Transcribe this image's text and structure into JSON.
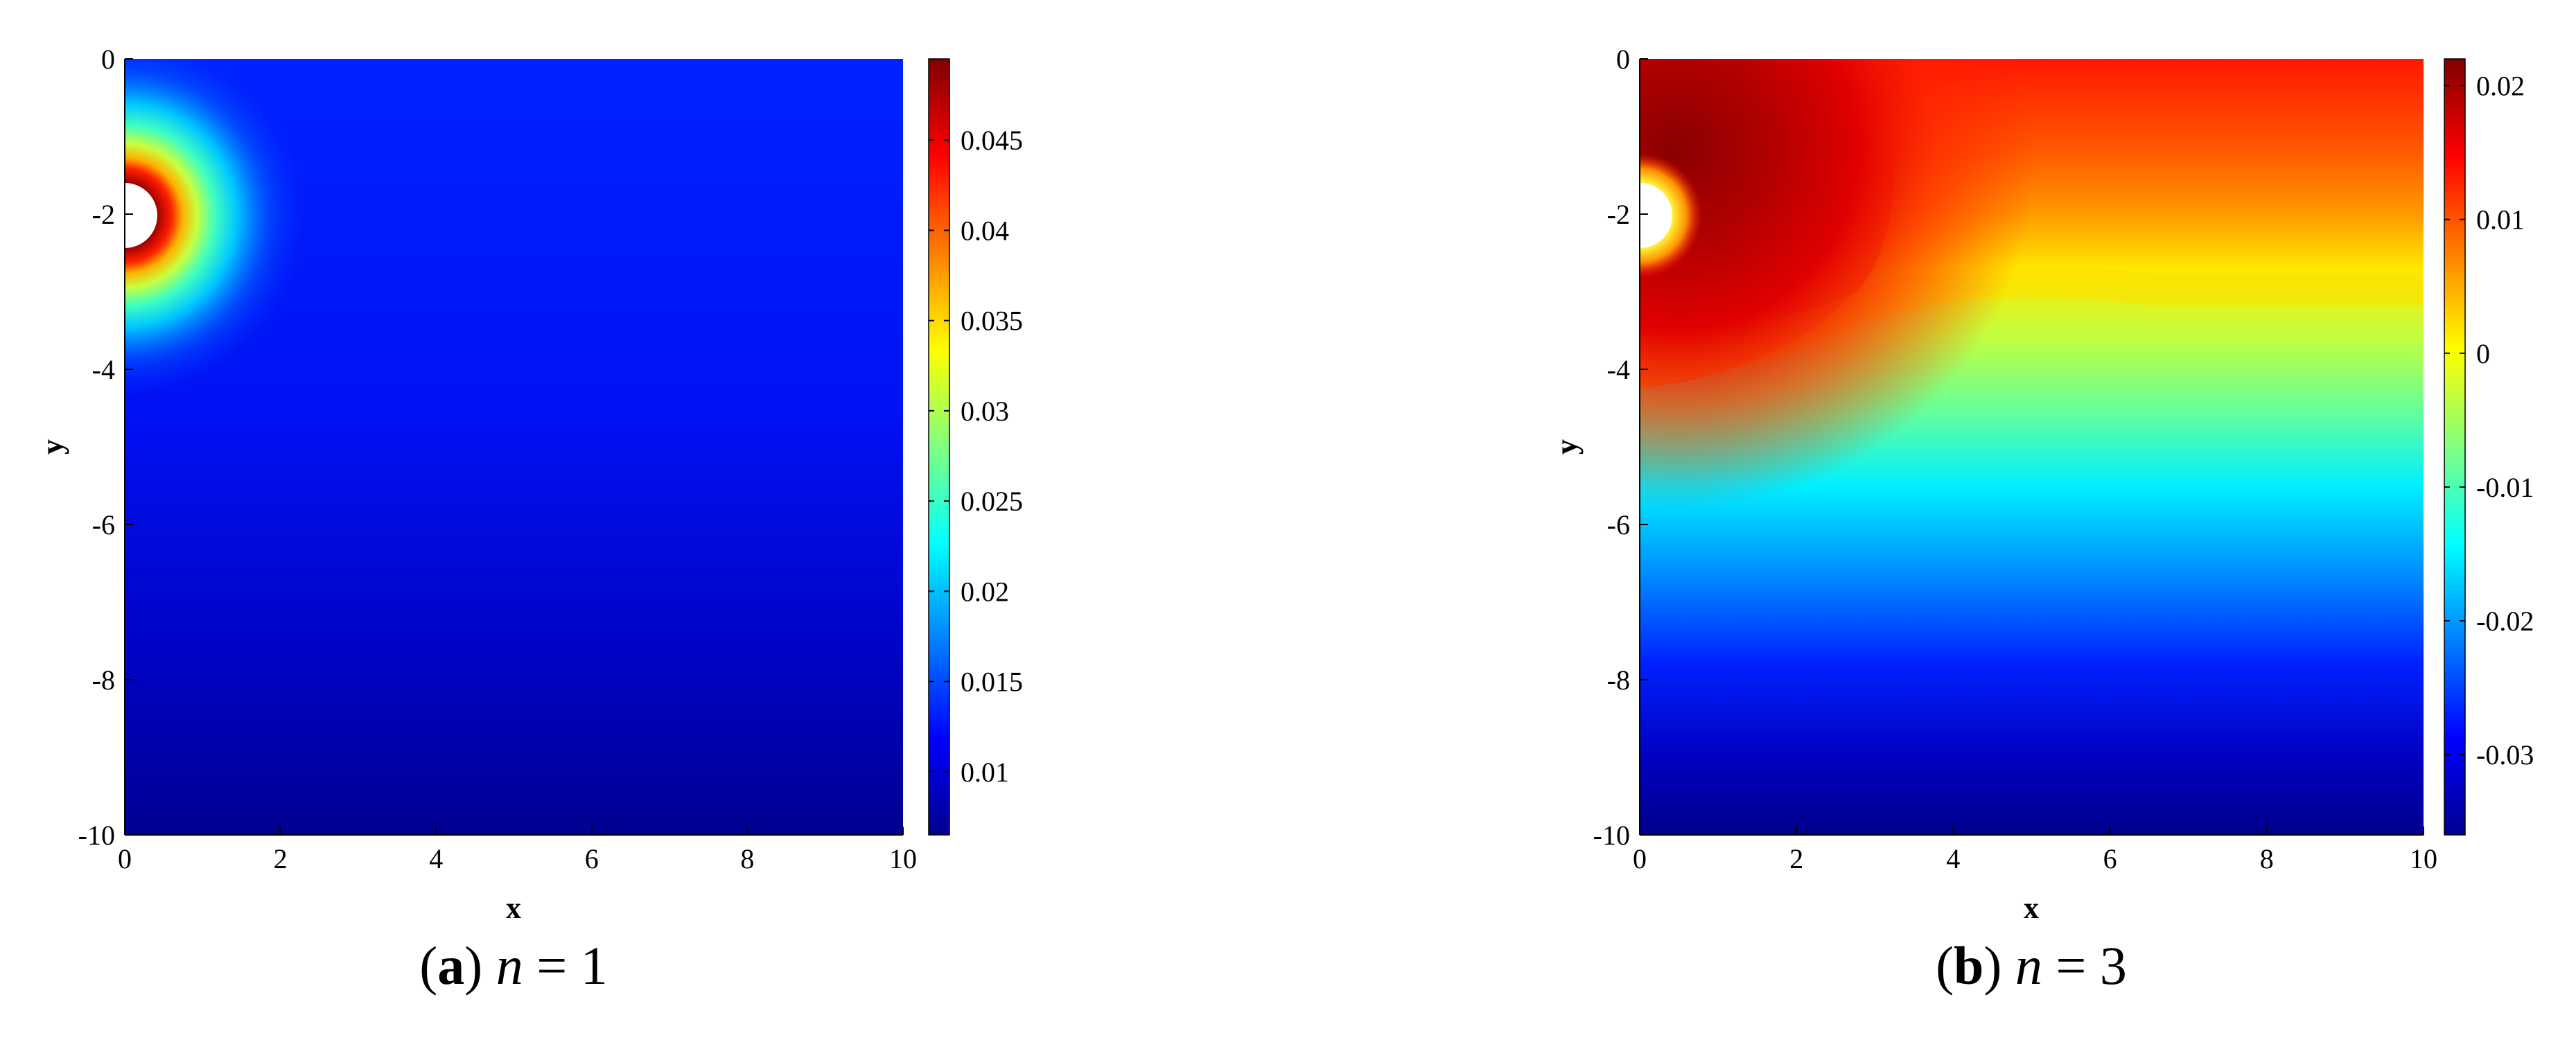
{
  "chart_data": [
    {
      "type": "heatmap",
      "panel": "a",
      "caption": {
        "letter": "a",
        "var": "n",
        "eq": "=",
        "value": "1"
      },
      "xlabel": "x",
      "ylabel": "y",
      "xlim": [
        0,
        10
      ],
      "ylim": [
        -10,
        0
      ],
      "xticks": [
        0,
        2,
        4,
        6,
        8,
        10
      ],
      "yticks": [
        0,
        -2,
        -4,
        -6,
        -8,
        -10
      ],
      "colormap": "jet",
      "clim": [
        0.0065,
        0.0495
      ],
      "colorbar_ticks": [
        "0.01",
        "0.015",
        "0.02",
        "0.025",
        "0.03",
        "0.035",
        "0.04",
        "0.045"
      ],
      "hole": {
        "x": 0,
        "y": -2,
        "r": 0.4
      },
      "field_samples": [
        {
          "x": 0.45,
          "y": -2,
          "value": 0.0495
        },
        {
          "x": 1.0,
          "y": -2,
          "value": 0.02
        },
        {
          "x": 2.0,
          "y": -2,
          "value": 0.0135
        },
        {
          "x": 5.0,
          "y": 0,
          "value": 0.014
        },
        {
          "x": 5.0,
          "y": -5,
          "value": 0.011
        },
        {
          "x": 5.0,
          "y": -10,
          "value": 0.0065
        }
      ]
    },
    {
      "type": "heatmap",
      "panel": "b",
      "caption": {
        "letter": "b",
        "var": "n",
        "eq": "=",
        "value": "3"
      },
      "xlabel": "x",
      "ylabel": "y",
      "xlim": [
        0,
        10
      ],
      "ylim": [
        -10,
        0
      ],
      "xticks": [
        0,
        2,
        4,
        6,
        8,
        10
      ],
      "yticks": [
        0,
        -2,
        -4,
        -6,
        -8,
        -10
      ],
      "colormap": "jet",
      "clim": [
        -0.036,
        0.022
      ],
      "colorbar_ticks": [
        "0.02",
        "0.01",
        "0",
        "-0.01",
        "-0.02",
        "-0.03"
      ],
      "hole": {
        "x": 0,
        "y": -2,
        "r": 0.4
      },
      "field_samples": [
        {
          "x": 0.8,
          "y": -1.2,
          "value": 0.022
        },
        {
          "x": 5.0,
          "y": 0,
          "value": 0.012
        },
        {
          "x": 5.0,
          "y": -2.8,
          "value": 0.0
        },
        {
          "x": 5.0,
          "y": -5.5,
          "value": -0.012
        },
        {
          "x": 5.0,
          "y": -8.5,
          "value": -0.028
        },
        {
          "x": 5.0,
          "y": -10,
          "value": -0.036
        }
      ]
    }
  ]
}
